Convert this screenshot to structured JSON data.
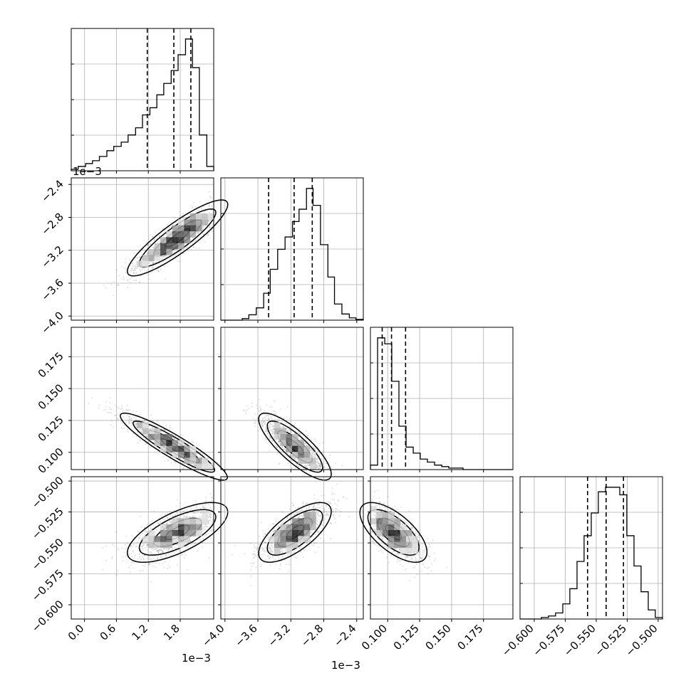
{
  "chart_data": {
    "type": "corner",
    "grid": true,
    "params": [
      {
        "label": "",
        "range": [
          -0.00025,
          0.00243
        ],
        "ticks": [
          0.0,
          0.0006,
          0.0012,
          0.0018
        ],
        "tick_labels": [
          "0.0",
          "0.6",
          "1.2",
          "1.8"
        ],
        "offset_text": "1e−3",
        "quantiles": [
          0.00118,
          0.00168,
          0.002
        ]
      },
      {
        "label": "",
        "range": [
          -0.00405,
          -0.00232
        ],
        "ticks": [
          -0.004,
          -0.0036,
          -0.0032,
          -0.0028,
          -0.0024
        ],
        "tick_labels": [
          "−4.0",
          "−3.6",
          "−3.2",
          "−2.8",
          "−2.4"
        ],
        "offset_text": "1e−3",
        "quantiles": [
          -0.00347,
          -0.00316,
          -0.00294
        ]
      },
      {
        "label": "",
        "range": [
          0.0865,
          0.198
        ],
        "ticks": [
          0.1,
          0.125,
          0.15,
          0.175
        ],
        "tick_labels": [
          "0.100",
          "0.125",
          "0.150",
          "0.175"
        ],
        "offset_text": "",
        "quantiles": [
          0.0957,
          0.103,
          0.114
        ]
      },
      {
        "label": "",
        "range": [
          -0.6115,
          -0.4965
        ],
        "ticks": [
          -0.6,
          -0.575,
          -0.55,
          -0.525,
          -0.5
        ],
        "tick_labels": [
          "−0.600",
          "−0.575",
          "−0.550",
          "−0.525",
          "−0.500"
        ],
        "offset_text": "",
        "quantiles": [
          -0.557,
          -0.542,
          -0.528
        ]
      }
    ],
    "histograms": [
      {
        "param": 0,
        "bins": [
          -0.00025,
          -0.00012,
          2e-05,
          0.00015,
          0.00028,
          0.00042,
          0.00055,
          0.00069,
          0.00082,
          0.00096,
          0.00109,
          0.00123,
          0.00136,
          0.00149,
          0.00163,
          0.00176,
          0.0019,
          0.00203,
          0.00216,
          0.0023,
          0.00243
        ],
        "counts": [
          1,
          3,
          5,
          7,
          10,
          14,
          17,
          20,
          25,
          30,
          39,
          44,
          53,
          61,
          70,
          81,
          92,
          72,
          25,
          3
        ]
      },
      {
        "param": 1,
        "bins": [
          -0.00405,
          -0.00396,
          -0.00388,
          -0.00379,
          -0.00371,
          -0.00362,
          -0.00353,
          -0.00345,
          -0.00336,
          -0.00327,
          -0.00318,
          -0.0031,
          -0.00301,
          -0.00293,
          -0.00284,
          -0.00275,
          -0.00267,
          -0.00258,
          -0.00249,
          -0.00241,
          -0.00232
        ],
        "counts": [
          0,
          0,
          0,
          2,
          7,
          16,
          35,
          66,
          92,
          108,
          128,
          144,
          171,
          149,
          98,
          56,
          21,
          8,
          3,
          1
        ]
      },
      {
        "param": 2,
        "bins": [
          0.0865,
          0.0921,
          0.0977,
          0.1032,
          0.1088,
          0.1144,
          0.12,
          0.1255,
          0.1311,
          0.1367,
          0.1423,
          0.1478,
          0.1534,
          0.159,
          0.1646,
          0.1701,
          0.1757,
          0.1813,
          0.1869,
          0.1924,
          0.198
        ],
        "counts": [
          3,
          88,
          84,
          59,
          29,
          15,
          11,
          7,
          5,
          3,
          2,
          1,
          1,
          0,
          0,
          0,
          0,
          0,
          0,
          0
        ]
      },
      {
        "param": 3,
        "bins": [
          -0.6115,
          -0.6058,
          -0.6,
          -0.5943,
          -0.5885,
          -0.5828,
          -0.577,
          -0.5713,
          -0.5655,
          -0.5598,
          -0.554,
          -0.5483,
          -0.5425,
          -0.5368,
          -0.531,
          -0.5253,
          -0.5195,
          -0.5138,
          -0.508,
          -0.5023,
          -0.4965
        ],
        "counts": [
          0,
          0,
          0,
          1,
          2,
          4,
          10,
          20,
          38,
          55,
          70,
          84,
          87,
          87,
          82,
          55,
          35,
          18,
          6,
          1
        ]
      }
    ],
    "pairs": [
      {
        "x_param": 0,
        "y_param": 1,
        "relation": "positive",
        "sample_count": 2500
      },
      {
        "x_param": 0,
        "y_param": 2,
        "relation": "negative",
        "sample_count": 2500
      },
      {
        "x_param": 1,
        "y_param": 2,
        "relation": "negative",
        "sample_count": 2500
      },
      {
        "x_param": 0,
        "y_param": 3,
        "relation": "positive",
        "sample_count": 2500
      },
      {
        "x_param": 1,
        "y_param": 3,
        "relation": "positive",
        "sample_count": 2500
      },
      {
        "x_param": 2,
        "y_param": 3,
        "relation": "negative",
        "sample_count": 2500
      }
    ],
    "quantile_line_style": "dashed"
  }
}
